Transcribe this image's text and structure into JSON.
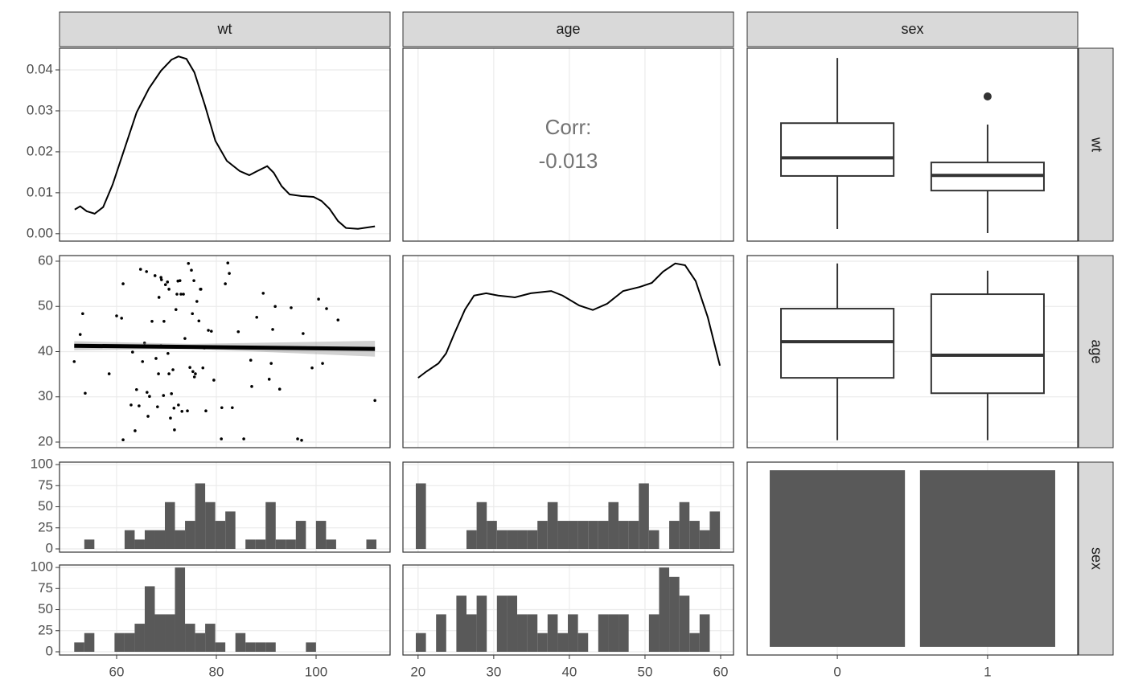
{
  "strips": {
    "top": [
      "wt",
      "age",
      "sex"
    ],
    "right": [
      "wt",
      "age",
      "sex"
    ]
  },
  "chart_data": [
    {
      "type": "density",
      "color": "#000000",
      "x": [
        51.6,
        52.7,
        54.0,
        55.6,
        57.3,
        59.2,
        61.6,
        64.0,
        66.5,
        68.9,
        71.0,
        72.4,
        74.0,
        75.6,
        77.7,
        79.8,
        82.1,
        84.7,
        86.6,
        88.2,
        90.2,
        91.5,
        93.1,
        94.7,
        97.1,
        99.5,
        101.1,
        102.7,
        104.4,
        106.0,
        108.4,
        111.8
      ],
      "values": [
        0.0059,
        0.0067,
        0.0055,
        0.0049,
        0.0065,
        0.012,
        0.0208,
        0.0296,
        0.0355,
        0.0398,
        0.0425,
        0.0433,
        0.0427,
        0.0394,
        0.0314,
        0.0227,
        0.0178,
        0.0153,
        0.0143,
        0.0153,
        0.0165,
        0.0149,
        0.0116,
        0.0096,
        0.0092,
        0.009,
        0.008,
        0.0061,
        0.0031,
        0.0014,
        0.0012,
        0.0018
      ],
      "xlim": [
        48.55,
        114.84
      ],
      "ylim": [
        -0.0018,
        0.0453
      ],
      "xticks": [
        60,
        80,
        100
      ],
      "yticks": [
        {
          "value": 0,
          "label": "0.00"
        },
        0.01,
        0.02,
        0.03,
        0.04
      ]
    },
    {
      "type": "corr",
      "label": "Corr:",
      "value": -0.013,
      "xlim": [
        18,
        61.7
      ],
      "xticks": [
        20,
        30,
        40,
        50,
        60
      ]
    },
    {
      "type": "box",
      "color": "#333333",
      "ylim": [
        48.2,
        115.4
      ],
      "boxes": [
        {
          "min": 52.4,
          "q1": 70.9,
          "median": 77.2,
          "q3": 89.3,
          "max": 112
        },
        {
          "min": 51,
          "q1": 65.8,
          "median": 71.1,
          "q3": 75.6,
          "max": 88.8,
          "outliers": [
            98.6
          ]
        }
      ]
    },
    {
      "type": "scatter",
      "color": "#000000",
      "xlim": [
        48.55,
        114.84
      ],
      "ylim": [
        18.76,
        61.24
      ],
      "xticks": [
        60,
        80,
        100
      ],
      "yticks": [
        20,
        30,
        40,
        50,
        60
      ],
      "x": [
        51.5,
        52.7,
        53.2,
        53.7,
        58.5,
        60.0,
        61.0,
        61.3,
        61.3,
        62.9,
        63.2,
        63.7,
        64.0,
        64.5,
        64.8,
        65.2,
        65.6,
        66.0,
        66.1,
        66.3,
        66.6,
        67.1,
        67.7,
        67.9,
        68.2,
        68.4,
        68.5,
        68.9,
        68.9,
        69.0,
        69.4,
        69.5,
        69.8,
        70.2,
        70.3,
        70.5,
        70.5,
        70.8,
        71.0,
        71.3,
        71.5,
        71.6,
        71.9,
        72.1,
        72.3,
        72.4,
        72.7,
        72.9,
        73.1,
        73.4,
        73.7,
        74.2,
        74.4,
        74.7,
        75.0,
        75.2,
        75.3,
        75.5,
        75.6,
        75.8,
        76.1,
        76.5,
        76.8,
        76.9,
        77.3,
        77.6,
        77.9,
        78.4,
        79.0,
        79.5,
        81.0,
        81.1,
        81.8,
        82.3,
        82.6,
        83.2,
        84.4,
        85.5,
        86.9,
        87.1,
        88.1,
        89.4,
        90.6,
        91.0,
        91.3,
        91.8,
        92.7,
        95.0,
        96.3,
        97.1,
        97.4,
        99.2,
        100.5,
        101.3,
        102.1,
        104.4,
        111.8
      ],
      "y": [
        37.8,
        43.8,
        48.4,
        30.8,
        35.1,
        47.9,
        47.4,
        20.5,
        55.0,
        28.2,
        39.9,
        22.5,
        31.6,
        28.0,
        58.2,
        37.8,
        41.9,
        57.7,
        31.0,
        25.7,
        30.1,
        46.7,
        56.8,
        38.5,
        27.8,
        35.1,
        52.0,
        56.4,
        41.3,
        55.9,
        30.3,
        46.7,
        54.8,
        55.4,
        39.6,
        53.8,
        35.1,
        25.3,
        30.7,
        36.0,
        27.5,
        22.7,
        49.3,
        52.7,
        55.6,
        28.2,
        55.7,
        52.7,
        26.8,
        52.7,
        42.9,
        26.9,
        59.5,
        36.5,
        58.0,
        48.4,
        35.6,
        55.7,
        34.4,
        35.1,
        51.1,
        46.8,
        53.8,
        53.8,
        36.4,
        40.8,
        26.9,
        44.7,
        44.5,
        33.7,
        20.7,
        27.6,
        55.0,
        59.6,
        57.3,
        27.6,
        44.4,
        20.7,
        38.1,
        32.3,
        47.6,
        52.9,
        33.9,
        37.4,
        44.9,
        50.0,
        31.7,
        49.7,
        20.7,
        20.4,
        44.0,
        36.4,
        51.6,
        37.4,
        49.5,
        47.0,
        29.2
      ],
      "fit": {
        "x": [
          51.5,
          111.8
        ],
        "y": [
          41.3,
          40.6
        ]
      },
      "band": {
        "x": [
          51.5,
          75,
          111.8
        ],
        "lower": [
          40.3,
          40.6,
          38.9
        ],
        "upper": [
          42.3,
          41.7,
          42.4
        ]
      }
    },
    {
      "type": "density",
      "color": "#000000",
      "xlim": [
        18,
        61.7
      ],
      "ylim": [
        18.76,
        61.24
      ],
      "xticks": [
        20,
        30,
        40,
        50,
        60
      ],
      "yticks": [
        20,
        30,
        40,
        50,
        60
      ],
      "x": [
        20.0,
        21.1,
        22.7,
        23.7,
        24.8,
        26.2,
        27.4,
        29.0,
        30.6,
        32.8,
        34.9,
        37.6,
        39.1,
        41.3,
        43.1,
        45.0,
        47.1,
        49.3,
        50.9,
        52.4,
        54.0,
        55.3,
        56.7,
        58.3,
        59.9
      ],
      "values": [
        34.2,
        35.6,
        37.4,
        39.6,
        44.0,
        49.3,
        52.4,
        52.9,
        52.4,
        52.0,
        52.9,
        53.4,
        52.4,
        50.2,
        49.2,
        50.6,
        53.4,
        54.3,
        55.2,
        57.7,
        59.5,
        59.1,
        55.6,
        47.6,
        36.9
      ]
    },
    {
      "type": "box",
      "color": "#333333",
      "ylim": [
        18.76,
        61.24
      ],
      "yticks": [
        20,
        30,
        40,
        50,
        60
      ],
      "boxes": [
        {
          "min": 20.4,
          "q1": 34.2,
          "median": 42.2,
          "q3": 49.5,
          "max": 59.5
        },
        {
          "min": 20.4,
          "q1": 30.8,
          "median": 39.2,
          "q3": 52.7,
          "max": 57.9
        }
      ]
    },
    {
      "type": "histogram",
      "color": "#595959",
      "xlim": [
        48.55,
        114.84
      ],
      "ylim": [
        -3.8,
        102.9
      ],
      "xticks": [
        60,
        80,
        100
      ],
      "yticks": [
        0,
        25,
        50,
        75,
        100
      ],
      "bins": [
        51.5,
        53.52,
        55.54,
        57.56,
        59.58,
        61.6,
        63.62,
        65.64,
        67.66,
        69.68,
        71.7,
        73.72,
        75.74,
        77.76,
        79.78,
        81.8,
        83.82,
        85.84,
        87.86,
        89.88,
        91.9,
        93.92,
        95.94,
        97.96,
        99.98,
        102.0,
        104.02,
        106.04,
        108.06,
        110.08,
        112.1
      ],
      "values": [
        0,
        11.1,
        0,
        0,
        0,
        22.2,
        11.1,
        22.2,
        22.2,
        55.5,
        22.2,
        33.3,
        77.7,
        55.5,
        33.3,
        44.4,
        0,
        11.1,
        11.1,
        55.5,
        11.1,
        11.1,
        33.3,
        0,
        33.3,
        11.1,
        0,
        0,
        0,
        11.1
      ]
    },
    {
      "type": "histogram",
      "color": "#595959",
      "xlim": [
        48.55,
        114.84
      ],
      "ylim": [
        -3.8,
        102.9
      ],
      "xticks": [
        60,
        80,
        100
      ],
      "yticks": [
        0,
        25,
        50,
        75,
        100
      ],
      "bins": [
        51.5,
        53.52,
        55.54,
        57.56,
        59.58,
        61.6,
        63.62,
        65.64,
        67.66,
        69.68,
        71.7,
        73.72,
        75.74,
        77.76,
        79.78,
        81.8,
        83.82,
        85.84,
        87.86,
        89.88,
        91.9,
        93.92,
        95.94,
        97.96,
        99.98,
        102.0,
        104.02,
        106.04,
        108.06,
        110.08,
        112.1
      ],
      "values": [
        11.1,
        22.2,
        0,
        0,
        22.2,
        22.2,
        33.3,
        77.7,
        44.4,
        44.4,
        99.9,
        33.3,
        22.2,
        33.3,
        11.1,
        0,
        22.2,
        11.1,
        11.1,
        11.1,
        0,
        0,
        0,
        11.1,
        0,
        0,
        0,
        0,
        0,
        0
      ]
    },
    {
      "type": "histogram",
      "color": "#595959",
      "xlim": [
        18,
        61.7
      ],
      "ylim": [
        -3.8,
        102.9
      ],
      "xticks": [
        20,
        30,
        40,
        50,
        60
      ],
      "yticks": [
        0,
        25,
        50,
        75,
        100
      ],
      "bins": [
        19.7,
        21.04,
        22.38,
        23.72,
        25.06,
        26.4,
        27.74,
        29.08,
        30.42,
        31.76,
        33.1,
        34.44,
        35.78,
        37.12,
        38.46,
        39.8,
        41.14,
        42.48,
        43.82,
        45.16,
        46.5,
        47.84,
        49.18,
        50.52,
        51.86,
        53.2,
        54.54,
        55.88,
        57.22,
        58.56,
        59.9
      ],
      "values": [
        77.7,
        0,
        0,
        0,
        0,
        22.2,
        55.5,
        33.3,
        22.2,
        22.2,
        22.2,
        22.2,
        33.3,
        55.5,
        33.3,
        33.3,
        33.3,
        33.3,
        33.3,
        55.5,
        33.3,
        33.3,
        77.7,
        22.2,
        0,
        33.3,
        55.5,
        33.3,
        22.2,
        44.4
      ]
    },
    {
      "type": "histogram",
      "color": "#595959",
      "xlim": [
        18,
        61.7
      ],
      "ylim": [
        -3.8,
        102.9
      ],
      "xticks": [
        20,
        30,
        40,
        50,
        60
      ],
      "yticks": [
        0,
        25,
        50,
        75,
        100
      ],
      "bins": [
        19.7,
        21.04,
        22.38,
        23.72,
        25.06,
        26.4,
        27.74,
        29.08,
        30.42,
        31.76,
        33.1,
        34.44,
        35.78,
        37.12,
        38.46,
        39.8,
        41.14,
        42.48,
        43.82,
        45.16,
        46.5,
        47.84,
        49.18,
        50.52,
        51.86,
        53.2,
        54.54,
        55.88,
        57.22,
        58.56,
        59.9
      ],
      "values": [
        22.2,
        0,
        44.4,
        0,
        66.6,
        44.4,
        66.6,
        0,
        66.6,
        66.6,
        44.4,
        44.4,
        22.2,
        44.4,
        22.2,
        44.4,
        22.2,
        0,
        44.4,
        44.4,
        44.4,
        0,
        0,
        44.4,
        99.9,
        88.8,
        66.6,
        22.2,
        44.4,
        0
      ]
    },
    {
      "type": "bar",
      "color": "#595959",
      "categories": [
        "0",
        "1"
      ],
      "values": [
        50,
        50
      ],
      "ylim": [
        -2.3,
        52.3
      ]
    }
  ]
}
